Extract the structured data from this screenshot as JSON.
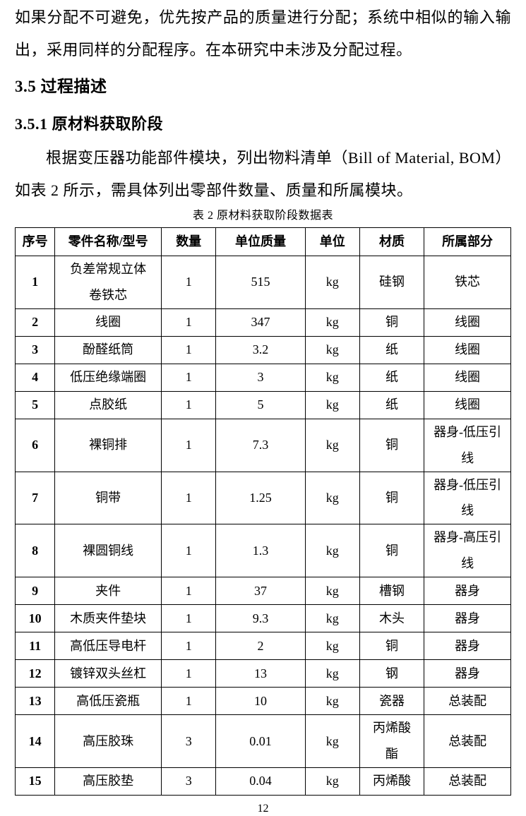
{
  "content": {
    "paragraph_allocation": "如果分配不可避免，优先按产品的质量进行分配；系统中相似的输入输出，采用同样的分配程序。在本研究中未涉及分配过程。",
    "heading_35": "3.5 过程描述",
    "heading_351": "3.5.1 原材料获取阶段",
    "paragraph_bom": "根据变压器功能部件模块，列出物料清单（Bill of Material, BOM）如表 2 所示，需具体列出零部件数量、质量和所属模块。",
    "page_number": "12"
  },
  "table": {
    "caption": "表 2 原材料获取阶段数据表",
    "headers": [
      "序号",
      "零件名称/型号",
      "数量",
      "单位质量",
      "单位",
      "材质",
      "所属部分"
    ],
    "rows": [
      [
        "1",
        "负差常规立体卷铁芯",
        "1",
        "515",
        "kg",
        "硅钢",
        "铁芯"
      ],
      [
        "2",
        "线圈",
        "1",
        "347",
        "kg",
        "铜",
        "线圈"
      ],
      [
        "3",
        "酚醛纸筒",
        "1",
        "3.2",
        "kg",
        "纸",
        "线圈"
      ],
      [
        "4",
        "低压绝缘端圈",
        "1",
        "3",
        "kg",
        "纸",
        "线圈"
      ],
      [
        "5",
        "点胶纸",
        "1",
        "5",
        "kg",
        "纸",
        "线圈"
      ],
      [
        "6",
        "裸铜排",
        "1",
        "7.3",
        "kg",
        "铜",
        "器身-低压引线"
      ],
      [
        "7",
        "铜带",
        "1",
        "1.25",
        "kg",
        "铜",
        "器身-低压引线"
      ],
      [
        "8",
        "裸圆铜线",
        "1",
        "1.3",
        "kg",
        "铜",
        "器身-高压引线"
      ],
      [
        "9",
        "夹件",
        "1",
        "37",
        "kg",
        "槽钢",
        "器身"
      ],
      [
        "10",
        "木质夹件垫块",
        "1",
        "9.3",
        "kg",
        "木头",
        "器身"
      ],
      [
        "11",
        "高低压导电杆",
        "1",
        "2",
        "kg",
        "铜",
        "器身"
      ],
      [
        "12",
        "镀锌双头丝杠",
        "1",
        "13",
        "kg",
        "钢",
        "器身"
      ],
      [
        "13",
        "高低压瓷瓶",
        "1",
        "10",
        "kg",
        "瓷器",
        "总装配"
      ],
      [
        "14",
        "高压胶珠",
        "3",
        "0.01",
        "kg",
        "丙烯酸酯",
        "总装配"
      ],
      [
        "15",
        "高压胶垫",
        "3",
        "0.04",
        "kg",
        "丙烯酸",
        "总装配"
      ]
    ]
  }
}
